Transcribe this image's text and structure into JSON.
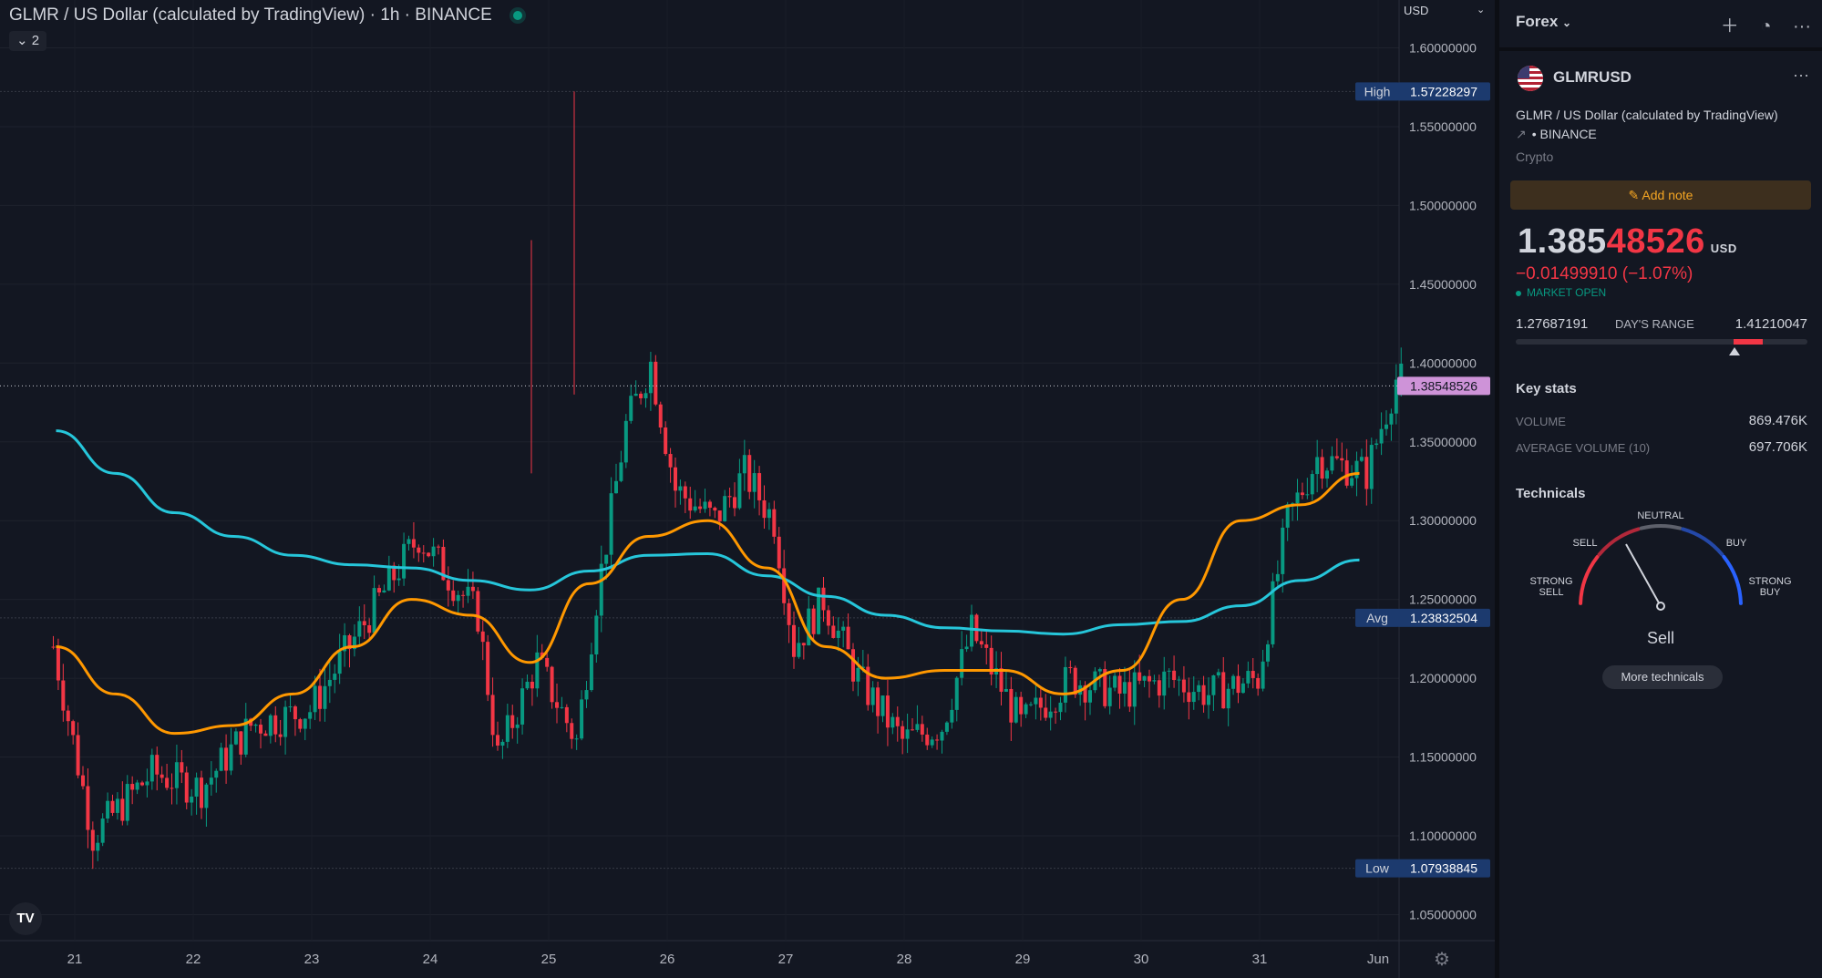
{
  "chart": {
    "title": "GLMR / US Dollar (calculated by TradingView)",
    "interval": "1h",
    "exchange": "BINANCE",
    "indicator_count": "2",
    "currency": "USD",
    "logo": "TV",
    "price_axis": [
      "1.60000000",
      "1.55000000",
      "1.50000000",
      "1.45000000",
      "1.40000000",
      "1.35000000",
      "1.30000000",
      "1.25000000",
      "1.20000000",
      "1.15000000",
      "1.10000000",
      "1.05000000"
    ],
    "time_axis": [
      "21",
      "22",
      "23",
      "24",
      "25",
      "26",
      "27",
      "28",
      "29",
      "30",
      "31",
      "Jun"
    ],
    "high": {
      "label": "High",
      "value": "1.57228297"
    },
    "low": {
      "label": "Low",
      "value": "1.07938845"
    },
    "avg": {
      "label": "Avg",
      "value": "1.23832504"
    },
    "last": {
      "value": "1.38548526"
    },
    "colors": {
      "up": "#089981",
      "down": "#f23645",
      "ma_fast": "#ff9800",
      "ma_slow": "#26c6da"
    }
  },
  "chart_data": {
    "type": "candlestick",
    "xlabel": "",
    "ylabel": "",
    "y_range": [
      1.02,
      1.63
    ],
    "x_range": [
      "May 20 18:00",
      "Jun 1 02:00"
    ],
    "key_levels": {
      "high": 1.57228297,
      "low": 1.07938845,
      "avg": 1.23832504,
      "last": 1.38548526
    },
    "ma_fast": {
      "x": [
        "May 20 18:00",
        "May 21 06:00",
        "May 21 18:00",
        "May 22 06:00",
        "May 22 18:00",
        "May 23 06:00",
        "May 23 18:00",
        "May 24 06:00",
        "May 24 18:00",
        "May 25 06:00",
        "May 25 18:00",
        "May 26 06:00",
        "May 26 18:00",
        "May 27 06:00",
        "May 27 18:00",
        "May 28 06:00",
        "May 28 18:00",
        "May 29 06:00",
        "May 29 18:00",
        "May 30 06:00",
        "May 30 18:00",
        "May 31 06:00",
        "May 31 18:00"
      ],
      "y": [
        1.22,
        1.19,
        1.165,
        1.17,
        1.19,
        1.22,
        1.25,
        1.24,
        1.21,
        1.26,
        1.29,
        1.3,
        1.27,
        1.22,
        1.2,
        1.205,
        1.205,
        1.19,
        1.205,
        1.25,
        1.3,
        1.31,
        1.33
      ]
    },
    "ma_slow": {
      "x": [
        "May 20 18:00",
        "May 21 06:00",
        "May 21 18:00",
        "May 22 06:00",
        "May 22 18:00",
        "May 23 06:00",
        "May 23 18:00",
        "May 24 06:00",
        "May 24 18:00",
        "May 25 06:00",
        "May 25 18:00",
        "May 26 06:00",
        "May 26 18:00",
        "May 27 06:00",
        "May 27 18:00",
        "May 28 06:00",
        "May 28 18:00",
        "May 29 06:00",
        "May 29 18:00",
        "May 30 06:00",
        "May 30 18:00",
        "May 31 06:00",
        "May 31 18:00"
      ],
      "y": [
        1.357,
        1.33,
        1.305,
        1.29,
        1.278,
        1.272,
        1.27,
        1.262,
        1.256,
        1.268,
        1.278,
        1.279,
        1.265,
        1.252,
        1.24,
        1.232,
        1.23,
        1.228,
        1.234,
        1.236,
        1.246,
        1.262,
        1.275
      ]
    }
  },
  "panel": {
    "list_name": "Forex",
    "symbol": "GLMRUSD",
    "description": "GLMR / US Dollar (calculated by TradingView)",
    "exchange": "BINANCE",
    "category": "Crypto",
    "add_note": "Add note",
    "price_main": "1.385",
    "price_tail": "48526",
    "currency": "USD",
    "change": "−0.01499910 (−1.07%)",
    "market_status": "MARKET OPEN",
    "day_range": {
      "low": "1.27687191",
      "label": "DAY'S RANGE",
      "high": "1.41210047",
      "last_pct": 75
    },
    "key_stats": {
      "title": "Key stats",
      "volume_label": "VOLUME",
      "volume": "869.476K",
      "avg_volume_label": "AVERAGE VOLUME (10)",
      "avg_volume": "697.706K"
    },
    "technicals": {
      "title": "Technicals",
      "strong_sell": [
        "STRONG",
        "SELL"
      ],
      "sell": "SELL",
      "neutral": "NEUTRAL",
      "buy": "BUY",
      "strong_buy": [
        "STRONG",
        "BUY"
      ],
      "verdict": "Sell",
      "more": "More technicals"
    }
  }
}
